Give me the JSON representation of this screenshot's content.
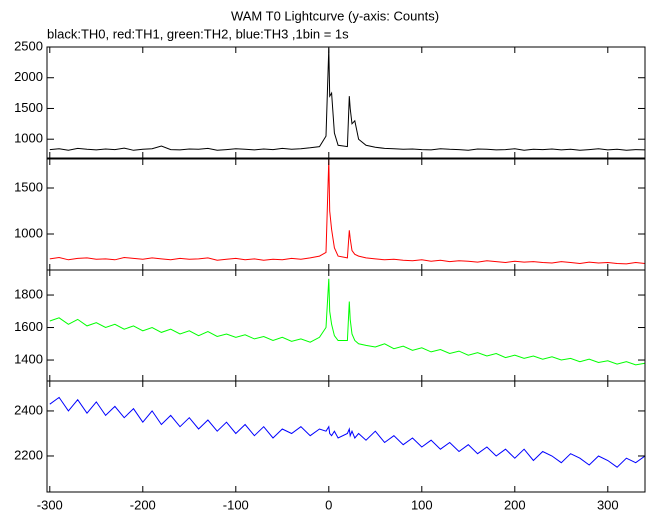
{
  "chart_data": {
    "type": "line",
    "title": "WAM T0 Lightcurve (y-axis: Counts)",
    "subtitle": "black:TH0, red:TH1, green:TH2, blue:TH3 ,1bin = 1s",
    "x": [
      -300,
      -290,
      -280,
      -270,
      -260,
      -250,
      -240,
      -230,
      -220,
      -210,
      -200,
      -190,
      -180,
      -170,
      -160,
      -150,
      -140,
      -130,
      -120,
      -110,
      -100,
      -90,
      -80,
      -70,
      -60,
      -50,
      -40,
      -30,
      -20,
      -10,
      -3,
      0,
      1,
      3,
      6,
      10,
      20,
      22,
      23,
      25,
      28,
      32,
      40,
      50,
      60,
      70,
      80,
      90,
      100,
      110,
      120,
      130,
      140,
      150,
      160,
      170,
      180,
      190,
      200,
      210,
      220,
      230,
      240,
      250,
      260,
      270,
      280,
      290,
      300,
      310,
      320,
      330,
      340
    ],
    "xlim": [
      -303,
      340
    ],
    "xticks": [
      -300,
      -200,
      -100,
      0,
      100,
      200,
      300
    ],
    "panels": [
      {
        "color": "#000000",
        "ylim": [
          694,
          2500
        ],
        "yticks": [
          1000,
          1500,
          2000,
          2500
        ],
        "values": [
          830,
          845,
          820,
          850,
          835,
          825,
          840,
          830,
          855,
          820,
          835,
          845,
          890,
          830,
          825,
          840,
          835,
          850,
          820,
          830,
          845,
          835,
          825,
          840,
          830,
          850,
          835,
          845,
          860,
          880,
          1050,
          2480,
          1700,
          1750,
          1100,
          900,
          880,
          1700,
          1500,
          1250,
          1300,
          1000,
          900,
          870,
          850,
          845,
          835,
          840,
          830,
          825,
          845,
          835,
          830,
          820,
          840,
          835,
          825,
          830,
          845,
          820,
          835,
          830,
          840,
          825,
          835,
          820,
          830,
          845,
          825,
          835,
          820,
          830,
          825
        ]
      },
      {
        "color": "#ff0000",
        "ylim": [
          609,
          1815
        ],
        "yticks": [
          1000,
          1500
        ],
        "values": [
          730,
          745,
          720,
          735,
          740,
          725,
          730,
          720,
          745,
          735,
          725,
          740,
          730,
          720,
          735,
          725,
          730,
          740,
          715,
          725,
          735,
          720,
          730,
          715,
          725,
          720,
          735,
          725,
          740,
          760,
          800,
          1810,
          1250,
          1050,
          850,
          760,
          740,
          1040,
          950,
          820,
          780,
          760,
          740,
          730,
          720,
          725,
          715,
          710,
          720,
          705,
          715,
          700,
          710,
          705,
          695,
          710,
          700,
          690,
          705,
          695,
          700,
          690,
          685,
          700,
          690,
          680,
          695,
          685,
          690,
          680,
          675,
          690,
          680
        ]
      },
      {
        "color": "#00ff00",
        "ylim": [
          1271,
          1954
        ],
        "yticks": [
          1400,
          1600,
          1800
        ],
        "values": [
          1640,
          1660,
          1620,
          1650,
          1610,
          1630,
          1600,
          1620,
          1590,
          1610,
          1580,
          1600,
          1570,
          1590,
          1560,
          1580,
          1550,
          1575,
          1545,
          1560,
          1540,
          1555,
          1530,
          1545,
          1520,
          1540,
          1515,
          1530,
          1510,
          1540,
          1600,
          1900,
          1700,
          1620,
          1550,
          1520,
          1520,
          1760,
          1650,
          1560,
          1520,
          1500,
          1490,
          1480,
          1500,
          1470,
          1485,
          1460,
          1475,
          1450,
          1465,
          1440,
          1455,
          1430,
          1445,
          1425,
          1440,
          1415,
          1430,
          1410,
          1425,
          1405,
          1420,
          1400,
          1410,
          1390,
          1405,
          1385,
          1395,
          1375,
          1390,
          1370,
          1380
        ]
      },
      {
        "color": "#0000ff",
        "ylim": [
          2040,
          2533
        ],
        "yticks": [
          2200,
          2400
        ],
        "values": [
          2430,
          2460,
          2400,
          2450,
          2390,
          2440,
          2380,
          2420,
          2370,
          2410,
          2350,
          2400,
          2340,
          2380,
          2330,
          2370,
          2320,
          2360,
          2310,
          2350,
          2300,
          2340,
          2290,
          2330,
          2280,
          2320,
          2300,
          2330,
          2290,
          2320,
          2310,
          2330,
          2300,
          2290,
          2310,
          2280,
          2300,
          2320,
          2290,
          2310,
          2280,
          2300,
          2270,
          2310,
          2260,
          2290,
          2250,
          2280,
          2240,
          2270,
          2230,
          2260,
          2220,
          2250,
          2210,
          2240,
          2200,
          2230,
          2190,
          2230,
          2180,
          2220,
          2200,
          2170,
          2210,
          2190,
          2160,
          2200,
          2180,
          2150,
          2190,
          2170,
          2200
        ]
      }
    ]
  }
}
